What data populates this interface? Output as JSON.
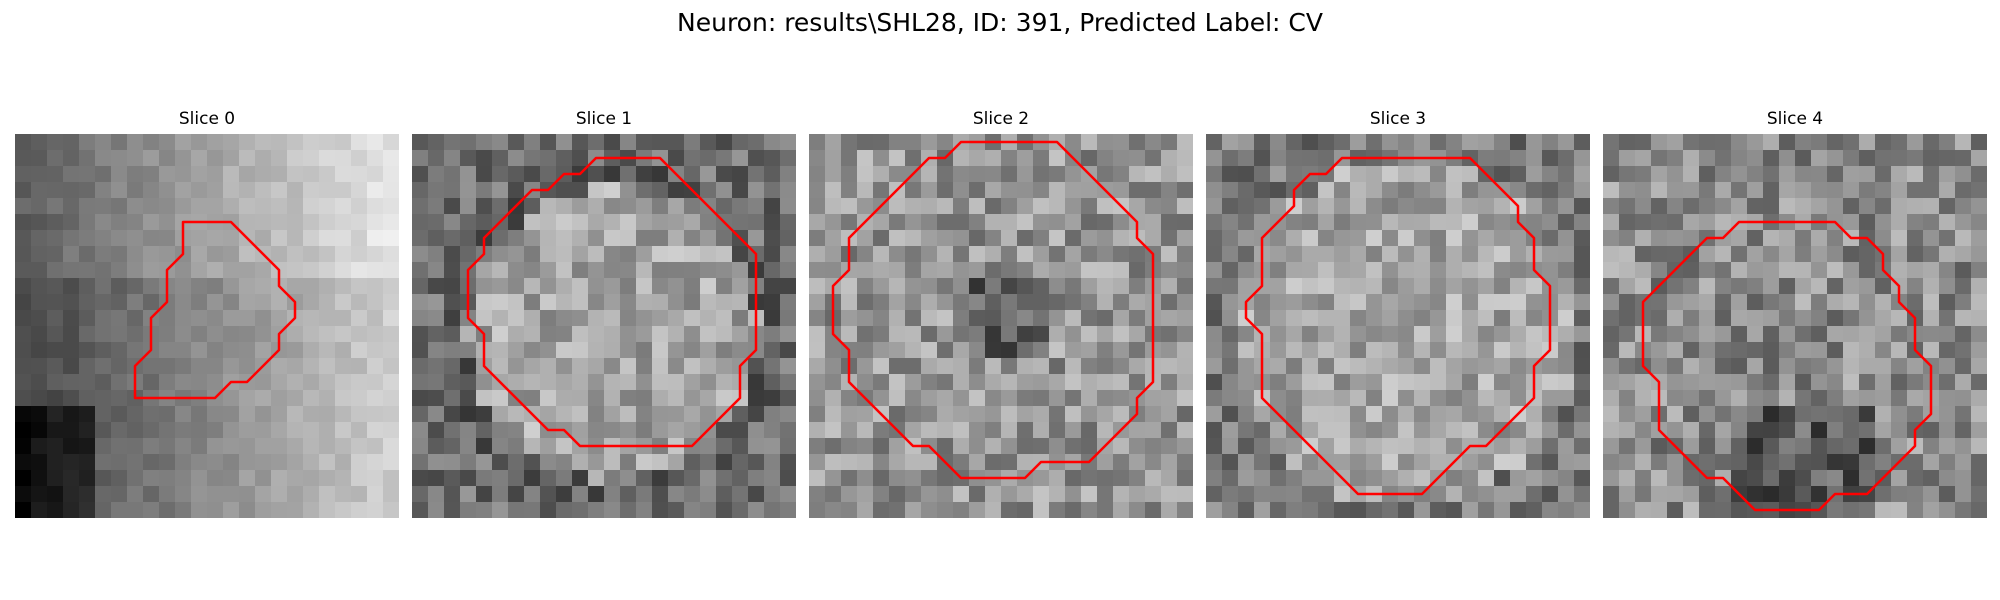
{
  "figure": {
    "title": "Neuron: results\\SHL28, ID: 391, Predicted Label: CV"
  },
  "slices": [
    {
      "title": "Slice 0",
      "grid": 24,
      "roi_contour_pixels": [
        [
          10.5,
          5.5
        ],
        [
          13.5,
          5.5
        ],
        [
          14.5,
          6.5
        ],
        [
          15.5,
          7.5
        ],
        [
          16.5,
          8.5
        ],
        [
          16.5,
          9.5
        ],
        [
          17.5,
          10.5
        ],
        [
          17.5,
          11.5
        ],
        [
          16.5,
          12.5
        ],
        [
          16.5,
          13.5
        ],
        [
          15.5,
          14.5
        ],
        [
          14.5,
          15.5
        ],
        [
          13.5,
          15.5
        ],
        [
          12.5,
          16.5
        ],
        [
          7.5,
          16.5
        ],
        [
          7.5,
          14.5
        ],
        [
          8.5,
          13.5
        ],
        [
          8.5,
          11.5
        ],
        [
          9.5,
          10.5
        ],
        [
          9.5,
          8.5
        ],
        [
          10.5,
          7.5
        ],
        [
          10.5,
          6.5
        ]
      ]
    },
    {
      "title": "Slice 1",
      "grid": 24,
      "roi_contour_pixels": [
        [
          11.5,
          1.5
        ],
        [
          15.5,
          1.5
        ],
        [
          16.5,
          2.5
        ],
        [
          17.5,
          3.5
        ],
        [
          18.5,
          4.5
        ],
        [
          19.5,
          5.5
        ],
        [
          20.5,
          6.5
        ],
        [
          21.5,
          7.5
        ],
        [
          21.5,
          13.5
        ],
        [
          20.5,
          14.5
        ],
        [
          20.5,
          16.5
        ],
        [
          19.5,
          17.5
        ],
        [
          18.5,
          18.5
        ],
        [
          17.5,
          19.5
        ],
        [
          10.5,
          19.5
        ],
        [
          9.5,
          18.5
        ],
        [
          8.5,
          18.5
        ],
        [
          7.5,
          17.5
        ],
        [
          6.5,
          16.5
        ],
        [
          5.5,
          15.5
        ],
        [
          4.5,
          14.5
        ],
        [
          4.5,
          12.5
        ],
        [
          3.5,
          11.5
        ],
        [
          3.5,
          8.5
        ],
        [
          4.5,
          7.5
        ],
        [
          4.5,
          6.5
        ],
        [
          5.5,
          5.5
        ],
        [
          6.5,
          4.5
        ],
        [
          7.5,
          3.5
        ],
        [
          8.5,
          3.5
        ],
        [
          9.5,
          2.5
        ],
        [
          10.5,
          2.5
        ]
      ]
    },
    {
      "title": "Slice 2",
      "grid": 24,
      "roi_contour_pixels": [
        [
          10.5,
          0.5
        ],
        [
          15.5,
          0.5
        ],
        [
          16.5,
          1.5
        ],
        [
          17.5,
          2.5
        ],
        [
          18.5,
          3.5
        ],
        [
          19.5,
          4.5
        ],
        [
          20.5,
          5.5
        ],
        [
          20.5,
          6.5
        ],
        [
          21.5,
          7.5
        ],
        [
          21.5,
          15.5
        ],
        [
          20.5,
          16.5
        ],
        [
          20.5,
          17.5
        ],
        [
          19.5,
          18.5
        ],
        [
          18.5,
          19.5
        ],
        [
          17.5,
          20.5
        ],
        [
          14.5,
          20.5
        ],
        [
          13.5,
          21.5
        ],
        [
          9.5,
          21.5
        ],
        [
          8.5,
          20.5
        ],
        [
          7.5,
          19.5
        ],
        [
          6.5,
          19.5
        ],
        [
          5.5,
          18.5
        ],
        [
          4.5,
          17.5
        ],
        [
          3.5,
          16.5
        ],
        [
          2.5,
          15.5
        ],
        [
          2.5,
          13.5
        ],
        [
          1.5,
          12.5
        ],
        [
          1.5,
          9.5
        ],
        [
          2.5,
          8.5
        ],
        [
          2.5,
          6.5
        ],
        [
          3.5,
          5.5
        ],
        [
          4.5,
          4.5
        ],
        [
          5.5,
          3.5
        ],
        [
          6.5,
          2.5
        ],
        [
          7.5,
          1.5
        ],
        [
          8.5,
          1.5
        ],
        [
          9.5,
          0.5
        ]
      ]
    },
    {
      "title": "Slice 3",
      "grid": 24,
      "roi_contour_pixels": [
        [
          8.5,
          1.5
        ],
        [
          16.5,
          1.5
        ],
        [
          17.5,
          2.5
        ],
        [
          18.5,
          3.5
        ],
        [
          19.5,
          4.5
        ],
        [
          19.5,
          5.5
        ],
        [
          20.5,
          6.5
        ],
        [
          20.5,
          8.5
        ],
        [
          21.5,
          9.5
        ],
        [
          21.5,
          13.5
        ],
        [
          20.5,
          14.5
        ],
        [
          20.5,
          16.5
        ],
        [
          19.5,
          17.5
        ],
        [
          18.5,
          18.5
        ],
        [
          17.5,
          19.5
        ],
        [
          16.5,
          19.5
        ],
        [
          15.5,
          20.5
        ],
        [
          14.5,
          21.5
        ],
        [
          13.5,
          22.5
        ],
        [
          9.5,
          22.5
        ],
        [
          8.5,
          21.5
        ],
        [
          7.5,
          20.5
        ],
        [
          6.5,
          19.5
        ],
        [
          5.5,
          18.5
        ],
        [
          4.5,
          17.5
        ],
        [
          3.5,
          16.5
        ],
        [
          3.5,
          12.5
        ],
        [
          2.5,
          11.5
        ],
        [
          2.5,
          10.5
        ],
        [
          3.5,
          9.5
        ],
        [
          3.5,
          6.5
        ],
        [
          4.5,
          5.5
        ],
        [
          5.5,
          4.5
        ],
        [
          5.5,
          3.5
        ],
        [
          6.5,
          2.5
        ],
        [
          7.5,
          2.5
        ]
      ]
    },
    {
      "title": "Slice 4",
      "grid": 24,
      "roi_contour_pixels": [
        [
          8.5,
          5.5
        ],
        [
          14.5,
          5.5
        ],
        [
          15.5,
          6.5
        ],
        [
          16.5,
          6.5
        ],
        [
          17.5,
          7.5
        ],
        [
          17.5,
          8.5
        ],
        [
          18.5,
          9.5
        ],
        [
          18.5,
          10.5
        ],
        [
          19.5,
          11.5
        ],
        [
          19.5,
          13.5
        ],
        [
          20.5,
          14.5
        ],
        [
          20.5,
          17.5
        ],
        [
          19.5,
          18.5
        ],
        [
          19.5,
          19.5
        ],
        [
          18.5,
          20.5
        ],
        [
          17.5,
          21.5
        ],
        [
          16.5,
          22.5
        ],
        [
          14.5,
          22.5
        ],
        [
          13.5,
          23.5
        ],
        [
          9.5,
          23.5
        ],
        [
          8.5,
          22.5
        ],
        [
          7.5,
          21.5
        ],
        [
          6.5,
          21.5
        ],
        [
          5.5,
          20.5
        ],
        [
          4.5,
          19.5
        ],
        [
          3.5,
          18.5
        ],
        [
          3.5,
          15.5
        ],
        [
          2.5,
          14.5
        ],
        [
          2.5,
          10.5
        ],
        [
          3.5,
          9.5
        ],
        [
          4.5,
          8.5
        ],
        [
          5.5,
          7.5
        ],
        [
          6.5,
          6.5
        ],
        [
          7.5,
          6.5
        ]
      ]
    }
  ],
  "colors": {
    "contour": "#ff0000",
    "background": "#ffffff"
  }
}
